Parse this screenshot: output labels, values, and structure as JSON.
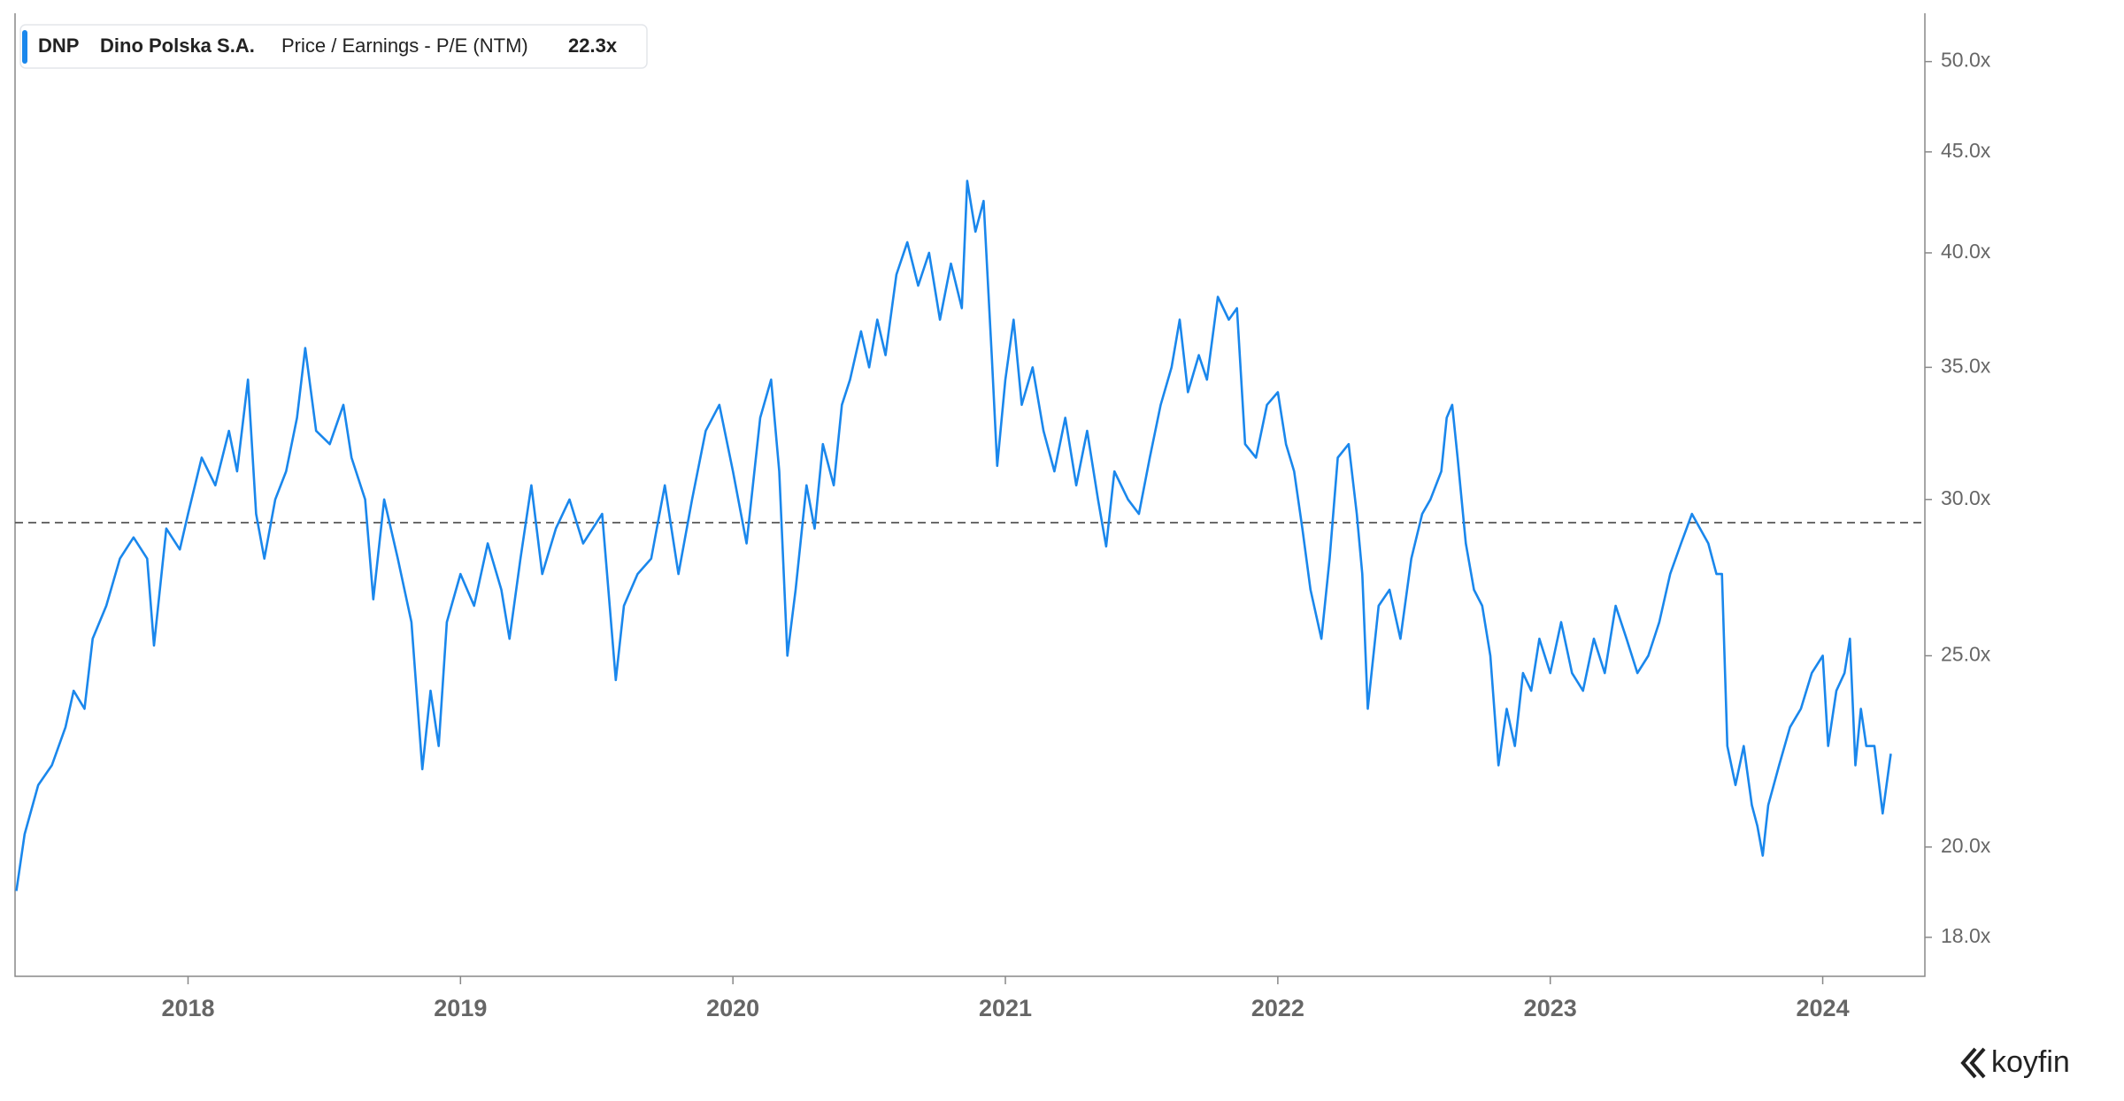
{
  "chart_data": {
    "type": "line",
    "legend": {
      "ticker": "DNP",
      "company": "Dino Polska S.A.",
      "last_value_label": "22.3x"
    },
    "brand": "koyfin",
    "yscale": "log",
    "xlim": [
      2017.365,
      2024.375
    ],
    "xticks": [
      2018,
      2019,
      2020,
      2021,
      2022,
      2023,
      2024
    ],
    "ylim": [
      17.2,
      52.9
    ],
    "yticks": [
      {
        "value": 18,
        "label": "18.0x"
      },
      {
        "value": 20,
        "label": "20.0x"
      },
      {
        "value": 25,
        "label": "25.0x"
      },
      {
        "value": 30,
        "label": "30.0x"
      },
      {
        "value": 35,
        "label": "35.0x"
      },
      {
        "value": 40,
        "label": "40.0x"
      },
      {
        "value": 45,
        "label": "45.0x"
      },
      {
        "value": 50,
        "label": "50.0x"
      }
    ],
    "reference_line": 29.2,
    "x": [
      2017.37,
      2017.4,
      2017.45,
      2017.5,
      2017.55,
      2017.58,
      2017.62,
      2017.65,
      2017.7,
      2017.75,
      2017.8,
      2017.85,
      2017.875,
      2017.92,
      2017.97,
      2018.0,
      2018.05,
      2018.1,
      2018.15,
      2018.18,
      2018.22,
      2018.25,
      2018.28,
      2018.32,
      2018.36,
      2018.4,
      2018.43,
      2018.47,
      2018.52,
      2018.57,
      2018.6,
      2018.65,
      2018.68,
      2018.72,
      2018.77,
      2018.82,
      2018.86,
      2018.89,
      2018.92,
      2018.95,
      2019.0,
      2019.05,
      2019.1,
      2019.15,
      2019.18,
      2019.22,
      2019.26,
      2019.3,
      2019.35,
      2019.4,
      2019.45,
      2019.52,
      2019.57,
      2019.6,
      2019.65,
      2019.7,
      2019.75,
      2019.8,
      2019.85,
      2019.9,
      2019.95,
      2020.0,
      2020.05,
      2020.1,
      2020.14,
      2020.17,
      2020.2,
      2020.23,
      2020.27,
      2020.3,
      2020.33,
      2020.37,
      2020.4,
      2020.43,
      2020.47,
      2020.5,
      2020.53,
      2020.56,
      2020.6,
      2020.64,
      2020.68,
      2020.72,
      2020.76,
      2020.8,
      2020.84,
      2020.86,
      2020.89,
      2020.92,
      2020.95,
      2020.97,
      2021.0,
      2021.03,
      2021.06,
      2021.1,
      2021.14,
      2021.18,
      2021.22,
      2021.26,
      2021.3,
      2021.34,
      2021.37,
      2021.4,
      2021.45,
      2021.49,
      2021.53,
      2021.57,
      2021.61,
      2021.64,
      2021.67,
      2021.71,
      2021.74,
      2021.78,
      2021.82,
      2021.85,
      2021.88,
      2021.92,
      2021.96,
      2022.0,
      2022.03,
      2022.06,
      2022.09,
      2022.12,
      2022.16,
      2022.19,
      2022.22,
      2022.26,
      2022.29,
      2022.31,
      2022.33,
      2022.37,
      2022.41,
      2022.45,
      2022.49,
      2022.53,
      2022.56,
      2022.6,
      2022.62,
      2022.64,
      2022.66,
      2022.69,
      2022.72,
      2022.75,
      2022.78,
      2022.81,
      2022.84,
      2022.87,
      2022.9,
      2022.93,
      2022.96,
      2023.0,
      2023.04,
      2023.08,
      2023.12,
      2023.16,
      2023.2,
      2023.24,
      2023.28,
      2023.32,
      2023.36,
      2023.4,
      2023.44,
      2023.48,
      2023.52,
      2023.55,
      2023.58,
      2023.61,
      2023.63,
      2023.65,
      2023.68,
      2023.71,
      2023.74,
      2023.76,
      2023.78,
      2023.8,
      2023.84,
      2023.88,
      2023.92,
      2023.96,
      2024.0,
      2024.02,
      2024.05,
      2024.08,
      2024.1,
      2024.12,
      2024.14,
      2024.16,
      2024.19,
      2024.22,
      2024.25
    ],
    "series": [
      {
        "name": "Price / Earnings - P/E (NTM)",
        "color": "#1a87ec",
        "values": [
          19.0,
          20.3,
          21.5,
          22.0,
          23.0,
          24.0,
          23.5,
          25.5,
          26.5,
          28.0,
          28.7,
          28.0,
          25.3,
          29.0,
          28.3,
          29.5,
          31.5,
          30.5,
          32.5,
          31.0,
          34.5,
          29.5,
          28.0,
          30.0,
          31.0,
          33.0,
          35.8,
          32.5,
          32.0,
          33.5,
          31.5,
          30.0,
          26.7,
          30.0,
          28.0,
          26.0,
          21.9,
          24.0,
          22.5,
          26.0,
          27.5,
          26.5,
          28.5,
          27.0,
          25.5,
          28.0,
          30.5,
          27.5,
          29.0,
          30.0,
          28.5,
          29.5,
          24.3,
          26.5,
          27.5,
          28.0,
          30.5,
          27.5,
          30.0,
          32.5,
          33.5,
          31.0,
          28.5,
          33.0,
          34.5,
          31.0,
          25.0,
          27.0,
          30.5,
          29.0,
          32.0,
          30.5,
          33.5,
          34.5,
          36.5,
          35.0,
          37.0,
          35.5,
          39.0,
          40.5,
          38.5,
          40.0,
          37.0,
          39.5,
          37.5,
          43.5,
          41.0,
          42.5,
          35.5,
          31.2,
          34.5,
          37.0,
          33.5,
          35.0,
          32.5,
          31.0,
          33.0,
          30.5,
          32.5,
          30.0,
          28.4,
          31.0,
          30.0,
          29.5,
          31.5,
          33.5,
          35.0,
          37.0,
          34.0,
          35.5,
          34.5,
          38.0,
          37.0,
          37.5,
          32.0,
          31.5,
          33.5,
          34.0,
          32.0,
          31.0,
          29.0,
          27.0,
          25.5,
          28.0,
          31.5,
          32.0,
          29.5,
          27.5,
          23.5,
          26.5,
          27.0,
          25.5,
          28.0,
          29.5,
          30.0,
          31.0,
          33.0,
          33.5,
          31.5,
          28.5,
          27.0,
          26.5,
          25.0,
          22.0,
          23.5,
          22.5,
          24.5,
          24.0,
          25.5,
          24.5,
          26.0,
          24.5,
          24.0,
          25.5,
          24.5,
          26.5,
          25.5,
          24.5,
          25.0,
          26.0,
          27.5,
          28.5,
          29.5,
          29.0,
          28.5,
          27.5,
          27.5,
          22.5,
          21.5,
          22.5,
          21.0,
          20.5,
          19.8,
          21.0,
          22.0,
          23.0,
          23.5,
          24.5,
          25.0,
          22.5,
          24.0,
          24.5,
          25.5,
          22.0,
          23.5,
          22.5,
          22.5,
          20.8,
          22.3
        ]
      }
    ]
  }
}
